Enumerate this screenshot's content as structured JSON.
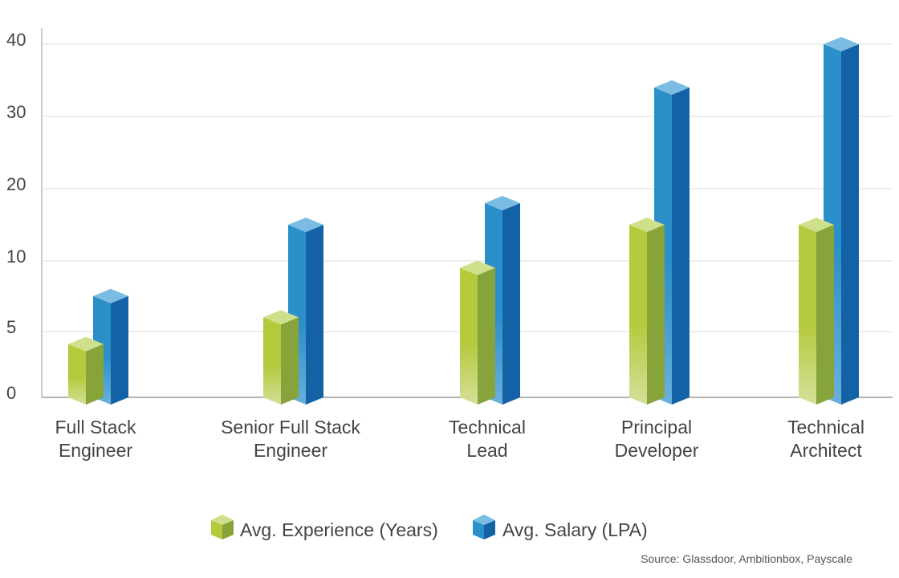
{
  "chart_data": {
    "type": "bar",
    "categories": [
      "Full Stack Engineer",
      "Senior Full Stack Engineer",
      "Technical Lead",
      "Principal Developer",
      "Technical Architect"
    ],
    "category_lines": [
      [
        "Full Stack",
        "Engineer"
      ],
      [
        "Senior Full Stack",
        "Engineer"
      ],
      [
        "Technical",
        "Lead"
      ],
      [
        "Principal",
        "Developer"
      ],
      [
        "Technical",
        "Architect"
      ]
    ],
    "series": [
      {
        "name": "Avg. Experience (Years)",
        "values": [
          3.5,
          5.5,
          9,
          14,
          14
        ],
        "colors": {
          "front": "#b5c93c",
          "front_light": "#d4e09a",
          "side": "#86a43a",
          "top": "#cfe08b"
        }
      },
      {
        "name": "Avg. Salary (LPA)",
        "values": [
          7,
          14,
          17,
          33,
          39
        ],
        "colors": {
          "front": "#2b8fc9",
          "front_light": "#6ab1dc",
          "side": "#1462a6",
          "top": "#7bbde2"
        }
      }
    ],
    "y_ticks": [
      0,
      5,
      10,
      20,
      30,
      40
    ],
    "ylim": [
      0,
      40
    ],
    "xlabel": "",
    "ylabel": "",
    "grid": true,
    "legend_position": "bottom-center",
    "source": "Source: Glassdoor, Ambitionbox, Payscale"
  }
}
